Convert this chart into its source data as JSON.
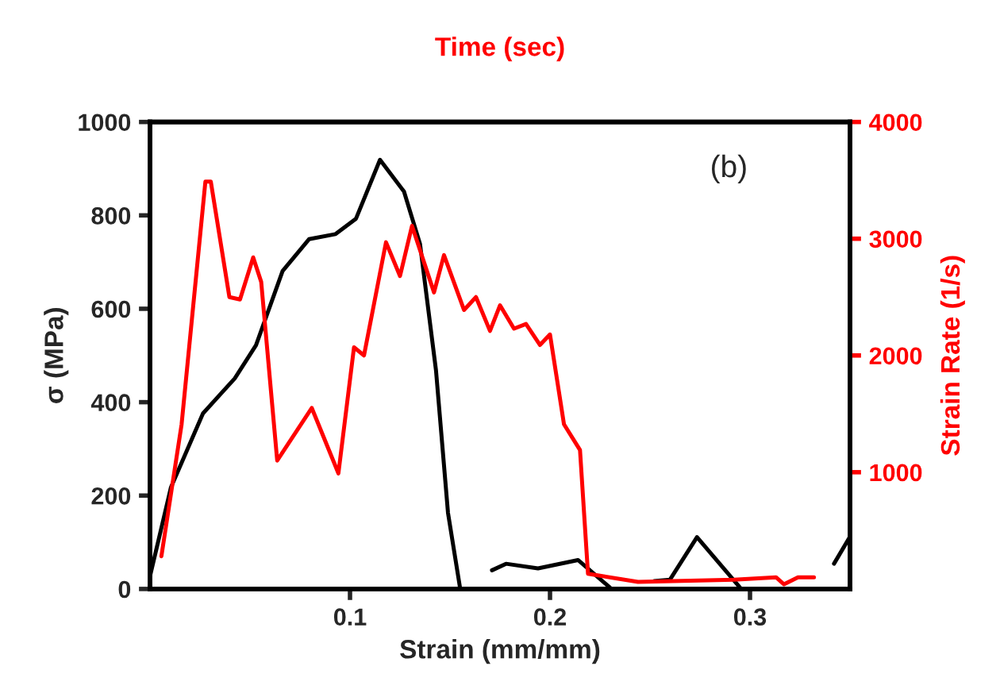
{
  "chart_data": {
    "type": "line",
    "xlabel": "Strain (mm/mm)",
    "ylabel": "σ (MPa)",
    "y2label": "Strain Rate (1/s)",
    "x2label": "Time (sec)",
    "annotations": [
      "(b)"
    ],
    "xlim": [
      0,
      0.35
    ],
    "xticks": [
      0.1,
      0.2,
      0.3
    ],
    "ylim": [
      0,
      1000
    ],
    "yticks": [
      0,
      200,
      400,
      600,
      800,
      1000
    ],
    "y2lim": [
      0,
      4000
    ],
    "y2ticks": [
      1000,
      2000,
      3000,
      4000
    ],
    "grid": false,
    "legend": false,
    "marker": "none",
    "line_style": "solid",
    "series": [
      {
        "color": "#000000",
        "x": [
          0.0,
          0.0105,
          0.0265,
          0.0424,
          0.053,
          0.0663,
          0.0795,
          0.0928,
          0.103,
          0.115,
          0.127,
          0.135,
          0.143,
          0.149,
          0.155,
          0.163,
          0.171,
          0.178,
          0.194,
          0.214,
          0.23,
          0.241,
          0.252,
          0.26,
          0.2735,
          0.295,
          0.32,
          0.342,
          0.35
        ],
        "values": [
          27,
          218,
          376,
          451,
          522,
          681,
          749,
          760,
          793,
          919,
          851,
          739,
          468,
          163,
          3,
          null,
          40,
          54,
          44,
          62,
          3,
          null,
          17,
          20,
          111,
          3,
          null,
          54,
          112
        ]
      },
      {
        "color": "#ff0000",
        "axis": "y2",
        "x": [
          0.0057,
          0.0158,
          0.0277,
          0.0304,
          0.0397,
          0.045,
          0.0516,
          0.0556,
          0.0636,
          0.0809,
          0.0942,
          0.102,
          0.107,
          0.118,
          0.125,
          0.131,
          0.142,
          0.147,
          0.157,
          0.163,
          0.17,
          0.175,
          0.182,
          0.188,
          0.195,
          0.2,
          0.207,
          0.215,
          0.219,
          0.244,
          0.292,
          0.313,
          0.317,
          0.324,
          0.332
        ],
        "values": [
          280,
          1410,
          3490,
          3490,
          2500,
          2480,
          2840,
          2630,
          1100,
          1550,
          990,
          2070,
          2000,
          2970,
          2680,
          3110,
          2540,
          2860,
          2390,
          2500,
          2210,
          2430,
          2230,
          2270,
          2090,
          2180,
          1410,
          1190,
          130,
          60,
          80,
          100,
          40,
          100,
          100
        ]
      }
    ]
  }
}
